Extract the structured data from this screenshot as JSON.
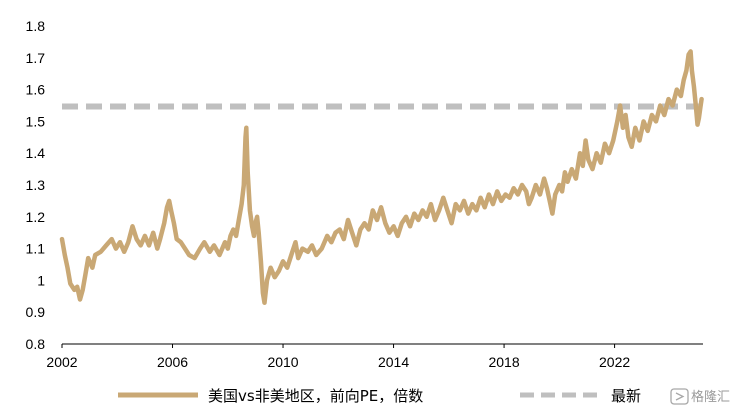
{
  "chart_data": {
    "type": "line",
    "title": "",
    "xlabel": "",
    "ylabel": "",
    "xlim": [
      2002,
      2025.2
    ],
    "ylim": [
      0.8,
      1.8
    ],
    "x_ticks": [
      "2002",
      "2006",
      "2010",
      "2014",
      "2018",
      "2022"
    ],
    "y_ticks": [
      "0.8",
      "0.9",
      "1",
      "1.1",
      "1.2",
      "1.3",
      "1.4",
      "1.5",
      "1.6",
      "1.7",
      "1.8"
    ],
    "grid": false,
    "legend_position": "bottom",
    "series": [
      {
        "name": "美国vs非美地区，前向PE，倍数",
        "color": "#C9A875",
        "style": "solid",
        "points": [
          [
            2002.0,
            1.13
          ],
          [
            2002.1,
            1.08
          ],
          [
            2002.2,
            1.04
          ],
          [
            2002.3,
            0.99
          ],
          [
            2002.45,
            0.97
          ],
          [
            2002.55,
            0.98
          ],
          [
            2002.65,
            0.94
          ],
          [
            2002.75,
            0.97
          ],
          [
            2002.85,
            1.02
          ],
          [
            2002.95,
            1.07
          ],
          [
            2003.1,
            1.04
          ],
          [
            2003.2,
            1.08
          ],
          [
            2003.4,
            1.09
          ],
          [
            2003.6,
            1.11
          ],
          [
            2003.8,
            1.13
          ],
          [
            2003.95,
            1.1
          ],
          [
            2004.1,
            1.12
          ],
          [
            2004.25,
            1.09
          ],
          [
            2004.4,
            1.12
          ],
          [
            2004.55,
            1.17
          ],
          [
            2004.7,
            1.13
          ],
          [
            2004.85,
            1.11
          ],
          [
            2005.0,
            1.14
          ],
          [
            2005.15,
            1.11
          ],
          [
            2005.3,
            1.15
          ],
          [
            2005.45,
            1.1
          ],
          [
            2005.55,
            1.13
          ],
          [
            2005.7,
            1.18
          ],
          [
            2005.8,
            1.23
          ],
          [
            2005.88,
            1.25
          ],
          [
            2005.95,
            1.22
          ],
          [
            2006.05,
            1.18
          ],
          [
            2006.15,
            1.13
          ],
          [
            2006.3,
            1.12
          ],
          [
            2006.45,
            1.1
          ],
          [
            2006.6,
            1.08
          ],
          [
            2006.8,
            1.07
          ],
          [
            2007.0,
            1.1
          ],
          [
            2007.15,
            1.12
          ],
          [
            2007.35,
            1.09
          ],
          [
            2007.5,
            1.11
          ],
          [
            2007.7,
            1.08
          ],
          [
            2007.9,
            1.12
          ],
          [
            2008.0,
            1.1
          ],
          [
            2008.1,
            1.14
          ],
          [
            2008.2,
            1.16
          ],
          [
            2008.3,
            1.14
          ],
          [
            2008.4,
            1.19
          ],
          [
            2008.5,
            1.24
          ],
          [
            2008.58,
            1.3
          ],
          [
            2008.64,
            1.45
          ],
          [
            2008.67,
            1.48
          ],
          [
            2008.72,
            1.34
          ],
          [
            2008.8,
            1.22
          ],
          [
            2008.88,
            1.17
          ],
          [
            2008.95,
            1.14
          ],
          [
            2009.0,
            1.18
          ],
          [
            2009.06,
            1.2
          ],
          [
            2009.12,
            1.15
          ],
          [
            2009.2,
            1.06
          ],
          [
            2009.27,
            0.96
          ],
          [
            2009.33,
            0.93
          ],
          [
            2009.42,
            1.0
          ],
          [
            2009.55,
            1.04
          ],
          [
            2009.7,
            1.01
          ],
          [
            2009.85,
            1.03
          ],
          [
            2010.0,
            1.06
          ],
          [
            2010.15,
            1.04
          ],
          [
            2010.3,
            1.08
          ],
          [
            2010.45,
            1.12
          ],
          [
            2010.55,
            1.07
          ],
          [
            2010.7,
            1.1
          ],
          [
            2010.9,
            1.09
          ],
          [
            2011.05,
            1.11
          ],
          [
            2011.2,
            1.08
          ],
          [
            2011.4,
            1.1
          ],
          [
            2011.6,
            1.14
          ],
          [
            2011.75,
            1.12
          ],
          [
            2011.9,
            1.15
          ],
          [
            2012.05,
            1.16
          ],
          [
            2012.2,
            1.13
          ],
          [
            2012.35,
            1.19
          ],
          [
            2012.5,
            1.15
          ],
          [
            2012.65,
            1.11
          ],
          [
            2012.8,
            1.16
          ],
          [
            2012.95,
            1.18
          ],
          [
            2013.1,
            1.16
          ],
          [
            2013.25,
            1.22
          ],
          [
            2013.4,
            1.19
          ],
          [
            2013.55,
            1.23
          ],
          [
            2013.7,
            1.18
          ],
          [
            2013.85,
            1.15
          ],
          [
            2014.0,
            1.17
          ],
          [
            2014.15,
            1.14
          ],
          [
            2014.3,
            1.18
          ],
          [
            2014.45,
            1.2
          ],
          [
            2014.6,
            1.17
          ],
          [
            2014.75,
            1.21
          ],
          [
            2014.9,
            1.19
          ],
          [
            2015.05,
            1.22
          ],
          [
            2015.2,
            1.2
          ],
          [
            2015.35,
            1.24
          ],
          [
            2015.5,
            1.19
          ],
          [
            2015.65,
            1.22
          ],
          [
            2015.8,
            1.26
          ],
          [
            2015.95,
            1.22
          ],
          [
            2016.1,
            1.18
          ],
          [
            2016.25,
            1.24
          ],
          [
            2016.4,
            1.22
          ],
          [
            2016.55,
            1.25
          ],
          [
            2016.7,
            1.21
          ],
          [
            2016.85,
            1.24
          ],
          [
            2017.0,
            1.22
          ],
          [
            2017.15,
            1.26
          ],
          [
            2017.3,
            1.23
          ],
          [
            2017.45,
            1.27
          ],
          [
            2017.6,
            1.24
          ],
          [
            2017.75,
            1.28
          ],
          [
            2017.9,
            1.25
          ],
          [
            2018.05,
            1.27
          ],
          [
            2018.2,
            1.26
          ],
          [
            2018.35,
            1.29
          ],
          [
            2018.5,
            1.27
          ],
          [
            2018.65,
            1.3
          ],
          [
            2018.8,
            1.28
          ],
          [
            2018.9,
            1.24
          ],
          [
            2019.0,
            1.26
          ],
          [
            2019.15,
            1.3
          ],
          [
            2019.3,
            1.27
          ],
          [
            2019.45,
            1.32
          ],
          [
            2019.55,
            1.29
          ],
          [
            2019.65,
            1.25
          ],
          [
            2019.75,
            1.21
          ],
          [
            2019.85,
            1.27
          ],
          [
            2020.0,
            1.3
          ],
          [
            2020.1,
            1.28
          ],
          [
            2020.2,
            1.34
          ],
          [
            2020.3,
            1.31
          ],
          [
            2020.45,
            1.35
          ],
          [
            2020.6,
            1.32
          ],
          [
            2020.75,
            1.4
          ],
          [
            2020.85,
            1.36
          ],
          [
            2020.95,
            1.44
          ],
          [
            2021.05,
            1.38
          ],
          [
            2021.2,
            1.35
          ],
          [
            2021.35,
            1.4
          ],
          [
            2021.5,
            1.37
          ],
          [
            2021.65,
            1.43
          ],
          [
            2021.8,
            1.4
          ],
          [
            2021.95,
            1.44
          ],
          [
            2022.1,
            1.5
          ],
          [
            2022.2,
            1.55
          ],
          [
            2022.3,
            1.48
          ],
          [
            2022.4,
            1.52
          ],
          [
            2022.5,
            1.45
          ],
          [
            2022.62,
            1.42
          ],
          [
            2022.75,
            1.48
          ],
          [
            2022.9,
            1.44
          ],
          [
            2023.05,
            1.5
          ],
          [
            2023.2,
            1.47
          ],
          [
            2023.35,
            1.52
          ],
          [
            2023.5,
            1.5
          ],
          [
            2023.65,
            1.55
          ],
          [
            2023.8,
            1.52
          ],
          [
            2023.95,
            1.57
          ],
          [
            2024.1,
            1.55
          ],
          [
            2024.25,
            1.6
          ],
          [
            2024.4,
            1.58
          ],
          [
            2024.5,
            1.63
          ],
          [
            2024.6,
            1.66
          ],
          [
            2024.68,
            1.71
          ],
          [
            2024.75,
            1.72
          ],
          [
            2024.8,
            1.66
          ],
          [
            2024.87,
            1.61
          ],
          [
            2024.94,
            1.55
          ],
          [
            2025.0,
            1.49
          ],
          [
            2025.05,
            1.51
          ],
          [
            2025.1,
            1.54
          ],
          [
            2025.15,
            1.57
          ]
        ]
      },
      {
        "name": "最新",
        "color": "#BFBFBF",
        "style": "dashed",
        "points": [
          [
            2002.0,
            1.547
          ],
          [
            2025.15,
            1.547
          ]
        ]
      }
    ]
  },
  "watermark": {
    "icon": "gelonghui-logo-icon",
    "text": "格隆汇"
  }
}
